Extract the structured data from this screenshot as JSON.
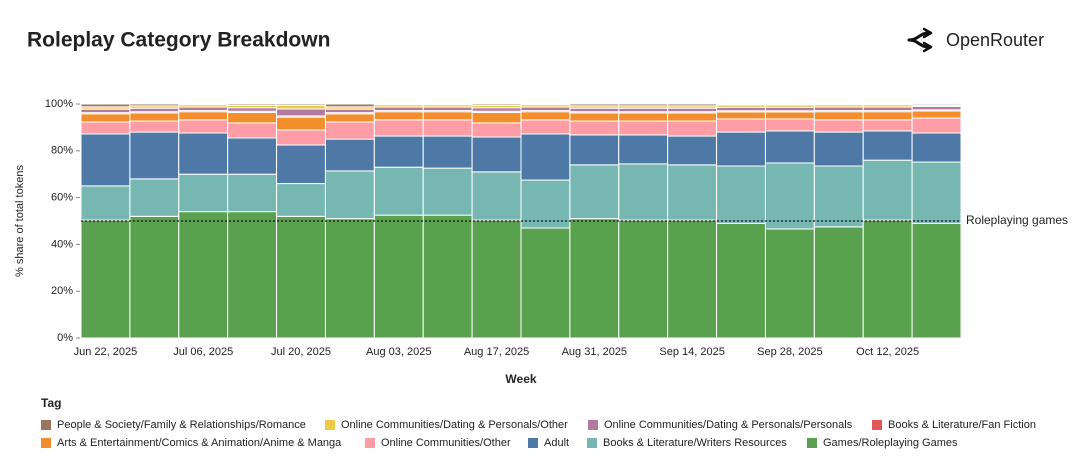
{
  "brand": "OpenRouter",
  "chart_data": {
    "type": "stacked_bar_percent",
    "title": "Roleplay Category Breakdown",
    "x_label": "Week",
    "y_label": "% share of total tokens",
    "legend_title": "Tag",
    "categories": [
      "Jun 22, 2025",
      null,
      "Jul 06, 2025",
      null,
      "Jul 20, 2025",
      null,
      "Aug 03, 2025",
      null,
      "Aug 17, 2025",
      null,
      "Aug 31, 2025",
      null,
      "Sep 14, 2025",
      null,
      "Sep 28, 2025",
      null,
      "Oct 12, 2025",
      null
    ],
    "ylim": [
      0,
      100
    ],
    "yticks": [
      {
        "value": 0,
        "label": "0%"
      },
      {
        "value": 20,
        "label": "20%"
      },
      {
        "value": 40,
        "label": "40%"
      },
      {
        "value": 60,
        "label": "60%"
      },
      {
        "value": 80,
        "label": "80%"
      },
      {
        "value": 100,
        "label": "100%"
      }
    ],
    "annotations": [
      {
        "label": "Roleplaying games",
        "value": 50
      }
    ],
    "series": [
      {
        "name": "People & Society/Family & Relationships/Romance",
        "color": "#9c755f",
        "values": [
          1.2,
          0.8,
          0.3,
          0.6,
          0.6,
          1.2,
          0.3,
          0.3,
          0.6,
          0.3,
          0.8,
          0.8,
          0.8,
          0.4,
          0.4,
          0.3,
          0.3,
          0.5
        ]
      },
      {
        "name": "Online Communities/Dating & Personals/Other",
        "color": "#edc948",
        "values": [
          1,
          1,
          1,
          1,
          1.5,
          1,
          1,
          1,
          1,
          1,
          1,
          1,
          1,
          1,
          1,
          1,
          1,
          0.5
        ]
      },
      {
        "name": "Online Communities/Dating & Personals/Personals",
        "color": "#b07aa1",
        "values": [
          1.5,
          1.5,
          1.5,
          1.5,
          3,
          1.5,
          1.5,
          1.5,
          1.5,
          1.5,
          1.5,
          1.5,
          1.5,
          1.5,
          1.5,
          1.5,
          1.5,
          1.5
        ]
      },
      {
        "name": "Books & Literature/Fan Fiction",
        "color": "#e15759",
        "values": [
          0.5,
          0.5,
          0.5,
          0.5,
          0.5,
          0.5,
          0.5,
          0.5,
          0.5,
          0.5,
          0.5,
          0.5,
          0.5,
          0.5,
          0.5,
          0.5,
          0.5,
          0.5
        ]
      },
      {
        "name": "Arts & Entertainment/Comics & Animation/Anime & Manga",
        "color": "#f28e2b",
        "values": [
          3.5,
          3.5,
          3.5,
          4.5,
          5.5,
          3.5,
          3.5,
          3.5,
          4.5,
          3.5,
          3.5,
          3.5,
          3.5,
          3,
          3,
          3.5,
          3.5,
          3
        ]
      },
      {
        "name": "Online Communities/Other",
        "color": "#ff9da7",
        "values": [
          5.1,
          4.7,
          5.6,
          6.4,
          6.4,
          7.3,
          6.9,
          6.9,
          6,
          6,
          5.9,
          5.9,
          6.4,
          5.6,
          5.1,
          5.2,
          4.7,
          6.4
        ]
      },
      {
        "name": "Adult",
        "color": "#4e79a7",
        "values": [
          22.2,
          20,
          17.6,
          15.5,
          16.5,
          13.6,
          13.3,
          13.7,
          14.9,
          19.7,
          12.8,
          12.4,
          12.3,
          14.5,
          13.7,
          14.5,
          12.5,
          12.4
        ]
      },
      {
        "name": "Books & Literature/Writers Resources",
        "color": "#76b7b2",
        "values": [
          14.6,
          16,
          16,
          16,
          14,
          20.4,
          20.5,
          20.1,
          20.6,
          20.5,
          23,
          24,
          23.6,
          24.5,
          28.2,
          26,
          25.6,
          26.2
        ]
      },
      {
        "name": "Games/Roleplaying Games",
        "color": "#59a14f",
        "values": [
          50.4,
          52,
          54,
          54,
          52,
          51,
          52.5,
          52.5,
          50.4,
          47,
          51,
          50.4,
          50.4,
          49,
          46.6,
          47.5,
          50.4,
          49
        ]
      }
    ]
  }
}
